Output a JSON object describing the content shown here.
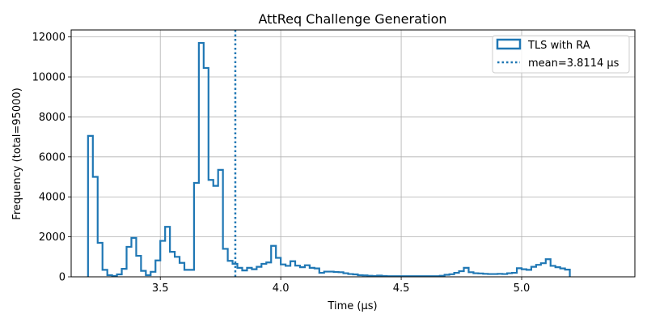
{
  "chart_data": {
    "type": "histogram-step",
    "title": "AttReq Challenge Generation",
    "xlabel": "Time (µs)",
    "ylabel": "Frequency (total=95000)",
    "xlim": [
      3.13,
      5.47
    ],
    "ylim": [
      0,
      12350
    ],
    "xticks": [
      3.5,
      4.0,
      4.5,
      5.0
    ],
    "xtick_labels": [
      "3.5",
      "4.0",
      "4.5",
      "5.0"
    ],
    "yticks": [
      0,
      2000,
      4000,
      6000,
      8000,
      10000,
      12000
    ],
    "ytick_labels": [
      "0",
      "2000",
      "4000",
      "6000",
      "8000",
      "10000",
      "12000"
    ],
    "grid": true,
    "legend_position": "top-right",
    "colors": {
      "series": "#1f77b4",
      "grid": "#b0b0b0"
    },
    "bin_start": 3.2,
    "bin_width": 0.02,
    "series": [
      {
        "name": "TLS with RA",
        "style": "step",
        "counts": [
          7050,
          5000,
          1700,
          350,
          80,
          40,
          120,
          400,
          1500,
          1950,
          1050,
          300,
          80,
          250,
          820,
          1800,
          2500,
          1250,
          1000,
          700,
          350,
          350,
          4700,
          11700,
          10450,
          4850,
          4550,
          5350,
          1400,
          800,
          650,
          450,
          320,
          450,
          380,
          500,
          650,
          720,
          1550,
          950,
          620,
          550,
          780,
          560,
          480,
          580,
          450,
          420,
          200,
          260,
          260,
          240,
          230,
          180,
          140,
          120,
          80,
          70,
          50,
          40,
          60,
          40,
          30,
          30,
          30,
          30,
          30,
          30,
          30,
          30,
          30,
          30,
          30,
          50,
          100,
          130,
          200,
          280,
          450,
          230,
          180,
          170,
          150,
          140,
          140,
          150,
          140,
          180,
          200,
          430,
          380,
          350,
          500,
          600,
          680,
          880,
          550,
          480,
          420,
          360
        ]
      }
    ],
    "mean": {
      "value": 3.8114,
      "label": "mean=3.8114 µs"
    }
  }
}
